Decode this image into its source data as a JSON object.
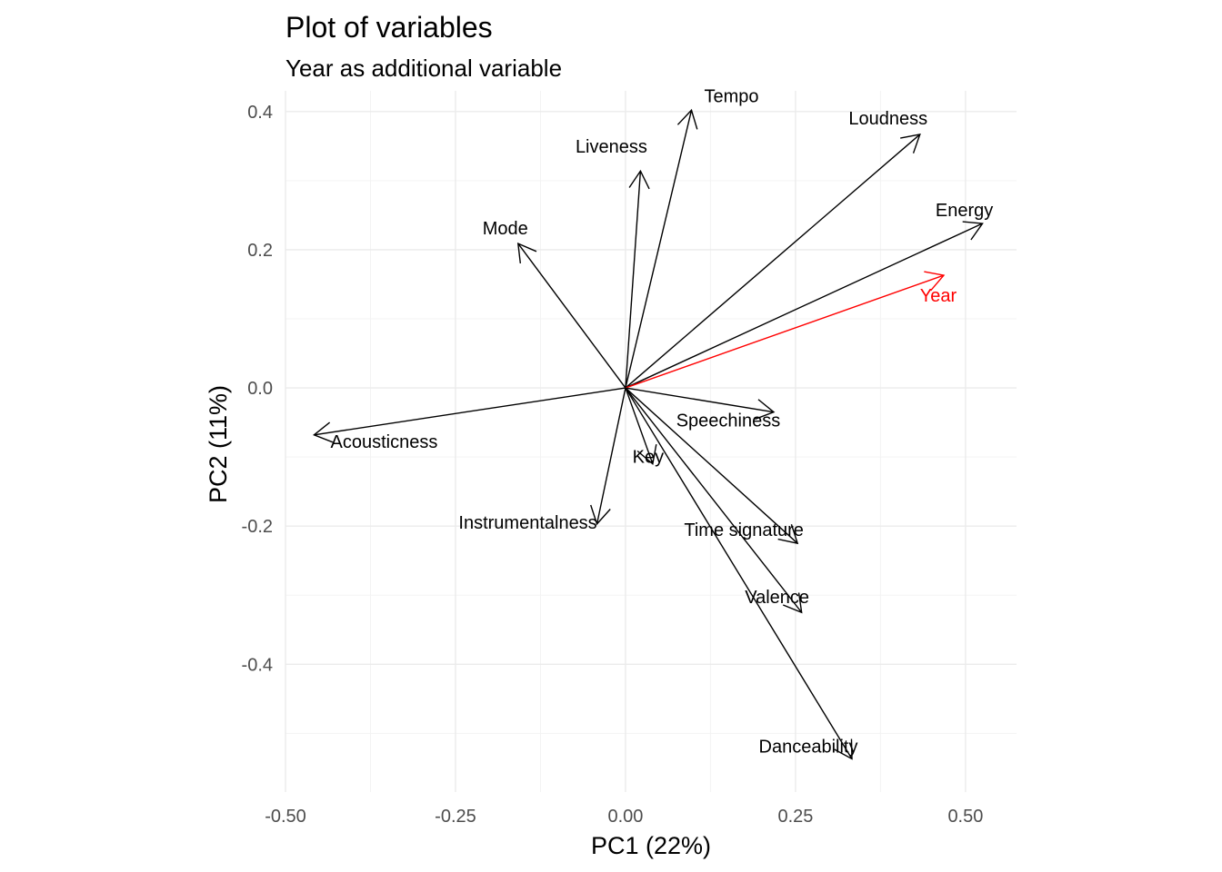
{
  "chart_data": {
    "type": "scatter",
    "subtype": "pca-variable-arrows",
    "title": "Plot of variables",
    "subtitle": "Year as additional variable",
    "xlabel": "PC1 (22%)",
    "ylabel": "PC2 (11%)",
    "xlim": [
      -0.5,
      0.575
    ],
    "ylim": [
      -0.585,
      0.43
    ],
    "xticks": [
      -0.5,
      -0.25,
      0.0,
      0.25,
      0.5
    ],
    "xtick_labels": [
      "-0.50",
      "-0.25",
      "0.00",
      "0.25",
      "0.50"
    ],
    "yticks": [
      0.4,
      0.2,
      0.0,
      -0.2,
      -0.4
    ],
    "ytick_labels": [
      "0.4",
      "0.2",
      "0.0",
      "-0.2",
      "-0.4"
    ],
    "grid": true,
    "legend": "none",
    "arrow_color": "#000000",
    "supplementary_color": "#ff0000",
    "variables": [
      {
        "name": "Tempo",
        "x": 0.097,
        "y": 0.402,
        "supplementary": false
      },
      {
        "name": "Loudness",
        "x": 0.433,
        "y": 0.367,
        "supplementary": false
      },
      {
        "name": "Liveness",
        "x": 0.022,
        "y": 0.314,
        "supplementary": false
      },
      {
        "name": "Energy",
        "x": 0.525,
        "y": 0.238,
        "supplementary": false
      },
      {
        "name": "Mode",
        "x": -0.158,
        "y": 0.209,
        "supplementary": false
      },
      {
        "name": "Year",
        "x": 0.468,
        "y": 0.163,
        "supplementary": true
      },
      {
        "name": "Speechiness",
        "x": 0.218,
        "y": -0.035,
        "supplementary": false
      },
      {
        "name": "Acousticness",
        "x": -0.458,
        "y": -0.068,
        "supplementary": false
      },
      {
        "name": "Key",
        "x": 0.04,
        "y": -0.11,
        "supplementary": false
      },
      {
        "name": "Instrumentalness",
        "x": -0.042,
        "y": -0.197,
        "supplementary": false
      },
      {
        "name": "Time signature",
        "x": 0.253,
        "y": -0.225,
        "supplementary": false
      },
      {
        "name": "Valence",
        "x": 0.259,
        "y": -0.325,
        "supplementary": false
      },
      {
        "name": "Danceability",
        "x": 0.333,
        "y": -0.537,
        "supplementary": false
      }
    ]
  }
}
